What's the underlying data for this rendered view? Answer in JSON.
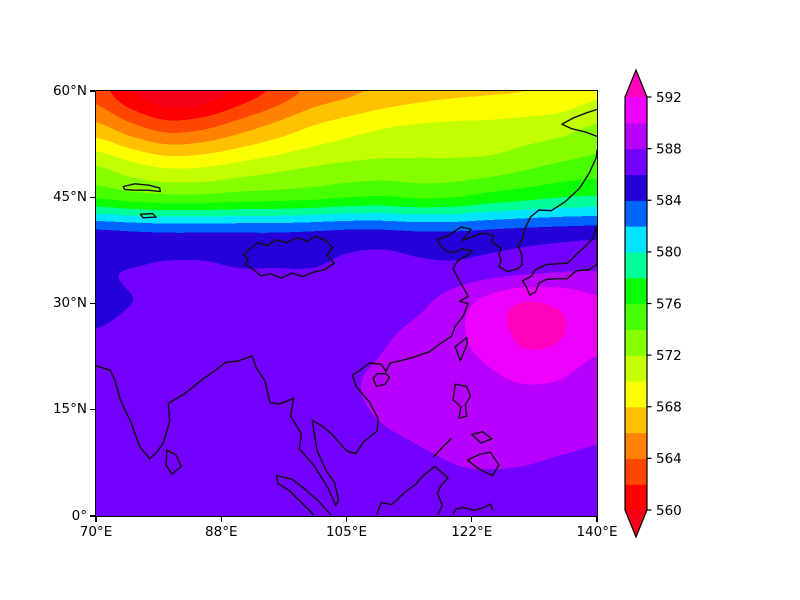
{
  "figure": {
    "background": "#ffffff"
  },
  "axes": {
    "lon_min": 70,
    "lon_max": 140,
    "lat_min": 0,
    "lat_max": 60,
    "x_ticks": [
      {
        "label": "70°E",
        "lon": 70
      },
      {
        "label": "88°E",
        "lon": 87.5
      },
      {
        "label": "105°E",
        "lon": 105
      },
      {
        "label": "122°E",
        "lon": 122.5
      },
      {
        "label": "140°E",
        "lon": 140
      }
    ],
    "y_ticks": [
      {
        "label": "0°",
        "lat": 0
      },
      {
        "label": "15°N",
        "lat": 15
      },
      {
        "label": "30°N",
        "lat": 30
      },
      {
        "label": "45°N",
        "lat": 45
      },
      {
        "label": "60°N",
        "lat": 60
      }
    ]
  },
  "colorbar": {
    "min": 560,
    "max": 592,
    "extend": "both",
    "tick_values": [
      592,
      588,
      584,
      580,
      576,
      572,
      568,
      564,
      560
    ],
    "tick_labels": [
      "592",
      "588",
      "584",
      "580",
      "576",
      "572",
      "568",
      "564",
      "560"
    ],
    "under_color": "#f50016",
    "over_color": "#ff00bb"
  },
  "chart_data": {
    "type": "heatmap",
    "title": "",
    "xlabel": "",
    "ylabel": "",
    "x": [
      70,
      75,
      80,
      85,
      90,
      95,
      100,
      105,
      110,
      115,
      120,
      125,
      130,
      135,
      140
    ],
    "y": [
      60,
      55,
      50,
      45,
      40,
      35,
      30,
      25,
      20,
      15,
      10,
      5,
      0
    ],
    "levels": [
      560,
      562,
      564,
      566,
      568,
      570,
      572,
      574,
      576,
      578,
      580,
      582,
      584,
      586,
      588,
      590,
      592
    ],
    "colors": [
      "#ff0000",
      "#ff4600",
      "#ff8300",
      "#ffc100",
      "#fdff00",
      "#c3ff00",
      "#86ff00",
      "#48ff00",
      "#0bff00",
      "#00ff99",
      "#00e4ff",
      "#0064ff",
      "#2600d8",
      "#7300ff",
      "#b800ff",
      "#ee00ff"
    ],
    "values": [
      [
        563,
        560,
        558,
        558.5,
        560.5,
        562.5,
        564.5,
        565.5,
        566.5,
        567.2,
        567.6,
        567.8,
        568,
        568.5,
        569.5
      ],
      [
        566.5,
        564.5,
        563,
        563.5,
        565,
        566.5,
        568,
        569,
        569.8,
        570.2,
        570.4,
        570.5,
        570.8,
        571.2,
        572.2
      ],
      [
        571.5,
        570,
        569,
        569.2,
        570,
        570.8,
        571.5,
        572,
        572.3,
        572.3,
        572.3,
        572.5,
        573.2,
        574,
        574.6
      ],
      [
        575.8,
        575,
        574.6,
        574.6,
        575,
        575.2,
        575.5,
        576,
        576.2,
        575.8,
        576,
        576.8,
        577.4,
        578,
        578.2
      ],
      [
        584.5,
        584.2,
        584,
        584,
        584,
        584,
        584.2,
        584.5,
        584.5,
        584.2,
        584.2,
        584.5,
        584.8,
        585,
        585.2
      ],
      [
        585.8,
        586,
        586.2,
        586.2,
        586,
        586,
        586,
        586.3,
        586.6,
        586.4,
        586.4,
        586.8,
        587.2,
        587.6,
        587.8
      ],
      [
        585.6,
        586,
        586.3,
        586.3,
        586.1,
        586.1,
        586.2,
        586.6,
        587.1,
        587.6,
        589,
        590.8,
        592.1,
        591.6,
        590.4
      ],
      [
        586.2,
        586.6,
        587,
        587,
        586.8,
        586.7,
        586.8,
        587.2,
        587.8,
        588.6,
        589.6,
        590.8,
        592.4,
        592,
        590.6
      ],
      [
        586.8,
        587.2,
        587.6,
        587.6,
        587.3,
        587.2,
        587.4,
        587.8,
        588.2,
        588.6,
        589,
        589.8,
        590.4,
        590.2,
        589.2
      ],
      [
        586.9,
        587.2,
        587.6,
        587.8,
        587.6,
        587.4,
        587.5,
        587.8,
        588.1,
        588.3,
        588.6,
        589,
        589.2,
        589,
        588.6
      ],
      [
        586.8,
        587,
        587.3,
        587.5,
        587.4,
        587.2,
        587.3,
        587.5,
        587.8,
        588,
        588.2,
        588.4,
        588.4,
        588.2,
        588
      ],
      [
        586.5,
        586.8,
        587,
        587.2,
        587.2,
        587,
        587,
        587.2,
        587.4,
        587.6,
        587.8,
        587.8,
        587.7,
        587.5,
        587.4
      ],
      [
        586.2,
        586.5,
        586.8,
        587,
        587,
        586.8,
        586.7,
        586.8,
        587,
        587.2,
        587.2,
        587.1,
        586.9,
        586.7,
        586.5
      ]
    ]
  },
  "coastlines": [
    {
      "name": "mainland-asia",
      "closed": false,
      "points": [
        [
          70,
          21.2
        ],
        [
          72,
          20.6
        ],
        [
          72.7,
          19
        ],
        [
          73.4,
          16.4
        ],
        [
          74.9,
          13.2
        ],
        [
          76.1,
          9.8
        ],
        [
          77.5,
          8.1
        ],
        [
          78.4,
          8.9
        ],
        [
          79.4,
          10.3
        ],
        [
          80.3,
          13.4
        ],
        [
          80.1,
          15.9
        ],
        [
          82.3,
          17.2
        ],
        [
          84.9,
          19.3
        ],
        [
          87,
          20.8
        ],
        [
          88.1,
          21.7
        ],
        [
          89.9,
          21.9
        ],
        [
          91.8,
          22.6
        ],
        [
          92.4,
          20.9
        ],
        [
          93.6,
          19.1
        ],
        [
          94.3,
          16
        ],
        [
          95.6,
          15.8
        ],
        [
          97.6,
          16.6
        ],
        [
          97.2,
          14.1
        ],
        [
          98.7,
          11.6
        ],
        [
          98.4,
          9.5
        ],
        [
          100.4,
          7.2
        ],
        [
          102.4,
          4
        ],
        [
          103.5,
          1.5
        ],
        [
          103.9,
          2.2
        ],
        [
          103.3,
          4.8
        ],
        [
          102.2,
          6.3
        ],
        [
          100.9,
          9.2
        ],
        [
          100.2,
          13.5
        ],
        [
          101.6,
          12.7
        ],
        [
          102.9,
          11.6
        ],
        [
          105,
          9.2
        ],
        [
          106.3,
          8.8
        ],
        [
          107.4,
          10.5
        ],
        [
          109.3,
          12
        ],
        [
          109.4,
          13.8
        ],
        [
          108.2,
          16.1
        ],
        [
          106.4,
          18.2
        ],
        [
          105.8,
          19.9
        ],
        [
          106.8,
          20.5
        ],
        [
          108.2,
          21.6
        ],
        [
          109.9,
          21.4
        ],
        [
          110.5,
          20.4
        ],
        [
          111.1,
          21.6
        ],
        [
          113.3,
          22.1
        ],
        [
          114.9,
          22.6
        ],
        [
          116.6,
          23.2
        ],
        [
          118.2,
          24.4
        ],
        [
          119.7,
          25.4
        ],
        [
          120.2,
          26.8
        ],
        [
          121.3,
          28.2
        ],
        [
          122,
          30
        ],
        [
          120.8,
          30.3
        ],
        [
          122,
          31
        ],
        [
          121.4,
          32.1
        ],
        [
          120.5,
          33.7
        ],
        [
          119.9,
          34.9
        ],
        [
          120.5,
          36
        ],
        [
          122,
          36.9
        ],
        [
          122.6,
          37.4
        ],
        [
          121.1,
          37.7
        ],
        [
          120.1,
          37.2
        ],
        [
          119.1,
          37.3
        ],
        [
          118.1,
          38.2
        ],
        [
          117.7,
          39.1
        ],
        [
          119.1,
          39.5
        ],
        [
          121,
          40.8
        ],
        [
          122.4,
          40.5
        ],
        [
          121.2,
          38.9
        ],
        [
          123.6,
          39.8
        ],
        [
          124.5,
          39.9
        ],
        [
          125.5,
          39.6
        ],
        [
          125.3,
          38.7
        ],
        [
          126.6,
          37.8
        ],
        [
          126.3,
          36.9
        ],
        [
          126.6,
          36.1
        ],
        [
          126.3,
          35.2
        ],
        [
          127.5,
          34.5
        ],
        [
          128.9,
          34.9
        ],
        [
          129.5,
          35.4
        ],
        [
          129.5,
          36.9
        ],
        [
          128.9,
          38.3
        ],
        [
          129.7,
          39.3
        ],
        [
          129.8,
          40.3
        ],
        [
          130.7,
          42.2
        ],
        [
          131.9,
          43.2
        ],
        [
          133.6,
          43.1
        ],
        [
          135.6,
          44.4
        ],
        [
          137.6,
          46.3
        ],
        [
          138.9,
          48.4
        ],
        [
          139.9,
          50.6
        ],
        [
          140,
          51.6
        ]
      ]
    },
    {
      "name": "okhotsk-coast",
      "closed": false,
      "points": [
        [
          140,
          53.6
        ],
        [
          138.4,
          54.2
        ],
        [
          136.4,
          54.7
        ],
        [
          135.1,
          55.3
        ],
        [
          136.7,
          56.2
        ],
        [
          138.5,
          56.9
        ],
        [
          140,
          57.4
        ]
      ]
    },
    {
      "name": "japan",
      "closed": false,
      "points": [
        [
          129.6,
          33.2
        ],
        [
          130.2,
          32.2
        ],
        [
          130.6,
          31.2
        ],
        [
          131.4,
          31.6
        ],
        [
          131.9,
          32.9
        ],
        [
          133,
          33.4
        ],
        [
          134.3,
          33.5
        ],
        [
          135.8,
          33.5
        ],
        [
          137.1,
          34.6
        ],
        [
          138.9,
          34.8
        ],
        [
          140,
          35.5
        ],
        [
          140,
          41
        ],
        [
          139.4,
          39.2
        ],
        [
          138.5,
          38.2
        ],
        [
          137.2,
          37
        ],
        [
          135.9,
          35.7
        ],
        [
          134.4,
          35.6
        ],
        [
          132.9,
          35.5
        ],
        [
          131.3,
          34.7
        ],
        [
          130.9,
          33.9
        ],
        [
          129.6,
          33.2
        ]
      ]
    },
    {
      "name": "taiwan",
      "closed": true,
      "points": [
        [
          121.8,
          25.2
        ],
        [
          120.2,
          23.9
        ],
        [
          120.9,
          21.9
        ],
        [
          121.9,
          24.4
        ]
      ]
    },
    {
      "name": "hainan",
      "closed": true,
      "points": [
        [
          108.7,
          19.4
        ],
        [
          109.3,
          20.1
        ],
        [
          110.5,
          20.1
        ],
        [
          111,
          19.6
        ],
        [
          110.4,
          18.6
        ],
        [
          109.2,
          18.3
        ]
      ]
    },
    {
      "name": "sri-lanka",
      "closed": true,
      "points": [
        [
          79.9,
          9.3
        ],
        [
          81.2,
          8.6
        ],
        [
          81.9,
          7
        ],
        [
          80.6,
          5.9
        ],
        [
          79.8,
          7.2
        ]
      ]
    },
    {
      "name": "luzon",
      "closed": true,
      "points": [
        [
          120.2,
          18.6
        ],
        [
          121.8,
          18.3
        ],
        [
          122.3,
          16.9
        ],
        [
          121.6,
          15.7
        ],
        [
          121.8,
          14.1
        ],
        [
          120.7,
          13.8
        ],
        [
          121,
          15.4
        ],
        [
          119.9,
          16.4
        ]
      ]
    },
    {
      "name": "visayas",
      "closed": true,
      "points": [
        [
          122.5,
          11.5
        ],
        [
          124,
          11.9
        ],
        [
          125.3,
          10.9
        ],
        [
          123.8,
          10.3
        ]
      ]
    },
    {
      "name": "mindanao",
      "closed": true,
      "points": [
        [
          121.9,
          7.9
        ],
        [
          123.6,
          8.7
        ],
        [
          125.1,
          9
        ],
        [
          126.3,
          7.2
        ],
        [
          125.4,
          5.7
        ],
        [
          123.4,
          6.7
        ]
      ]
    },
    {
      "name": "palawan",
      "closed": false,
      "points": [
        [
          117.2,
          8.4
        ],
        [
          118.6,
          9.9
        ],
        [
          119.6,
          10.9
        ]
      ]
    },
    {
      "name": "borneo",
      "closed": false,
      "points": [
        [
          109.2,
          0.2
        ],
        [
          109.9,
          1.9
        ],
        [
          111.3,
          1.6
        ],
        [
          113.1,
          3.3
        ],
        [
          114.7,
          4.5
        ],
        [
          115.5,
          5.5
        ],
        [
          117.3,
          7
        ],
        [
          119.2,
          5.4
        ],
        [
          118.2,
          4.3
        ],
        [
          117.7,
          3.2
        ],
        [
          118.4,
          1.5
        ],
        [
          117.8,
          0.2
        ]
      ]
    },
    {
      "name": "sumatra",
      "closed": false,
      "points": [
        [
          102.8,
          0.2
        ],
        [
          101,
          2.2
        ],
        [
          99.3,
          3.7
        ],
        [
          97.4,
          5.2
        ],
        [
          95.2,
          5.7
        ],
        [
          95.4,
          4.6
        ],
        [
          97,
          3.6
        ],
        [
          98.5,
          2.1
        ],
        [
          99.9,
          0.7
        ],
        [
          100.4,
          0.2
        ]
      ]
    },
    {
      "name": "sulawesi",
      "closed": false,
      "points": [
        [
          119.9,
          0.3
        ],
        [
          120.3,
          1
        ],
        [
          121.4,
          1.2
        ],
        [
          122.9,
          0.8
        ],
        [
          124.2,
          1.2
        ],
        [
          125.1,
          1.7
        ],
        [
          125.4,
          0.9
        ]
      ]
    },
    {
      "name": "lake-balkhash",
      "closed": true,
      "points": [
        [
          73.8,
          46.5
        ],
        [
          75.4,
          46.9
        ],
        [
          77.4,
          46.7
        ],
        [
          78.9,
          46.3
        ],
        [
          79,
          45.8
        ],
        [
          77.2,
          46
        ],
        [
          75.2,
          46
        ],
        [
          74,
          46.1
        ]
      ]
    },
    {
      "name": "issyk-kul",
      "closed": true,
      "points": [
        [
          76.2,
          42.6
        ],
        [
          77.9,
          42.7
        ],
        [
          78.4,
          42.2
        ],
        [
          76.6,
          42.1
        ]
      ]
    },
    {
      "name": "inland-water-outline",
      "closed": true,
      "points": [
        [
          91,
          37.3
        ],
        [
          92.6,
          38.6
        ],
        [
          94,
          38.2
        ],
        [
          95.1,
          39
        ],
        [
          96.6,
          38.6
        ],
        [
          98.1,
          39.3
        ],
        [
          99.6,
          38.8
        ],
        [
          100.6,
          39.5
        ],
        [
          102.1,
          38.9
        ],
        [
          103.1,
          37.9
        ],
        [
          102.3,
          36.8
        ],
        [
          103.3,
          35.7
        ],
        [
          102,
          34.8
        ],
        [
          100.3,
          34.4
        ],
        [
          98.9,
          33.8
        ],
        [
          97.4,
          34.3
        ],
        [
          95.9,
          33.6
        ],
        [
          94.4,
          34.2
        ],
        [
          93,
          33.9
        ],
        [
          92,
          34.8
        ],
        [
          90.8,
          35.5
        ],
        [
          91.3,
          36.4
        ],
        [
          90.6,
          36.9
        ]
      ]
    }
  ]
}
